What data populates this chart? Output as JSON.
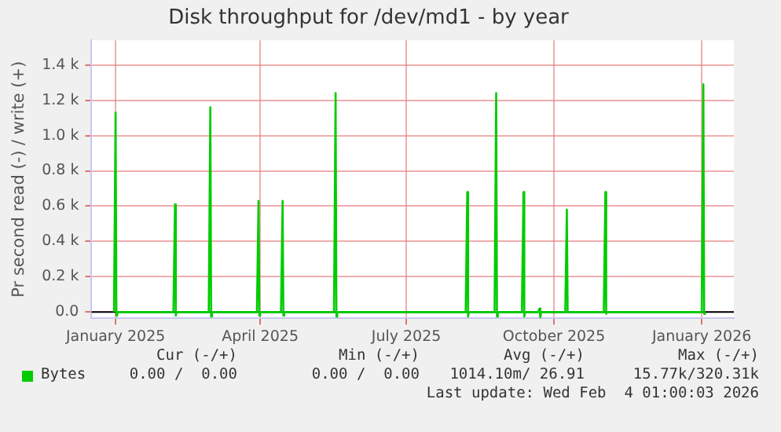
{
  "chart_data": {
    "type": "line",
    "title": "Disk throughput for /dev/md1 - by year",
    "ylabel": "Pr second read (-) / write (+)",
    "xlim": [
      "2024-12-17",
      "2026-01-21"
    ],
    "xticks": [
      {
        "value": "2025-01-01",
        "label": "January 2025"
      },
      {
        "value": "2025-04-01",
        "label": "April 2025"
      },
      {
        "value": "2025-07-01",
        "label": "July 2025"
      },
      {
        "value": "2025-10-01",
        "label": "October 2025"
      },
      {
        "value": "2026-01-01",
        "label": "January 2026"
      }
    ],
    "ylim": [
      -35,
      1540
    ],
    "yticks": [
      {
        "value": 0,
        "label": "0.0"
      },
      {
        "value": 200,
        "label": "0.2 k"
      },
      {
        "value": 400,
        "label": "0.4 k"
      },
      {
        "value": 600,
        "label": "0.6 k"
      },
      {
        "value": 800,
        "label": "0.8 k"
      },
      {
        "value": 1000,
        "label": "1.0 k"
      },
      {
        "value": 1200,
        "label": "1.2 k"
      },
      {
        "value": 1400,
        "label": "1.4 k"
      }
    ],
    "grid": true,
    "legend": "bottom",
    "marker": "none",
    "line_style": "solid",
    "ref_lines": [
      {
        "axis": "y",
        "value": 0,
        "color": "#000000"
      }
    ],
    "series": [
      {
        "name": "Bytes",
        "color": "#00cc00",
        "x": [
          "2024-12-31",
          "2025-01-01",
          "2025-01-01T12:00",
          "2025-01-02",
          "2025-02-06",
          "2025-02-07",
          "2025-02-07T12:00",
          "2025-02-08",
          "2025-02-28",
          "2025-03-01",
          "2025-03-01T12:00",
          "2025-03-02",
          "2025-03-30",
          "2025-03-31",
          "2025-03-31T12:00",
          "2025-04-01",
          "2025-04-14",
          "2025-04-15",
          "2025-04-15T12:00",
          "2025-04-16",
          "2025-05-17",
          "2025-05-18",
          "2025-05-18T12:00",
          "2025-05-19",
          "2025-08-07",
          "2025-08-08",
          "2025-08-08T12:00",
          "2025-08-09",
          "2025-08-25",
          "2025-08-26",
          "2025-08-26T12:00",
          "2025-08-27",
          "2025-09-11",
          "2025-09-12",
          "2025-09-12T12:00",
          "2025-09-13",
          "2025-09-21",
          "2025-09-22",
          "2025-09-22T12:00",
          "2025-09-23",
          "2025-10-08",
          "2025-10-09",
          "2025-10-09T12:00",
          "2025-10-10",
          "2025-11-01",
          "2025-11-02",
          "2025-11-02T12:00",
          "2025-11-03",
          "2026-01-01",
          "2026-01-02",
          "2026-01-02T12:00",
          "2026-01-03"
        ],
        "values": [
          0,
          1130,
          -20,
          0,
          0,
          610,
          -20,
          0,
          0,
          1160,
          -25,
          0,
          0,
          630,
          -20,
          0,
          0,
          630,
          -20,
          0,
          0,
          1240,
          -25,
          0,
          0,
          680,
          -25,
          0,
          0,
          1240,
          -25,
          0,
          0,
          680,
          -25,
          0,
          0,
          20,
          -30,
          0,
          0,
          580,
          0,
          0,
          0,
          680,
          -10,
          0,
          0,
          1290,
          -10,
          0
        ]
      }
    ],
    "annotations": [
      "Cur (-/+)",
      "Min (-/+)",
      "Avg (-/+)",
      "Max (-/+)",
      "0.00 /  0.00",
      "0.00 /  0.00",
      "1014.10m/ 26.91",
      "15.77k/320.31k",
      "Last update: Wed Feb  4 01:00:03 2026"
    ]
  }
}
